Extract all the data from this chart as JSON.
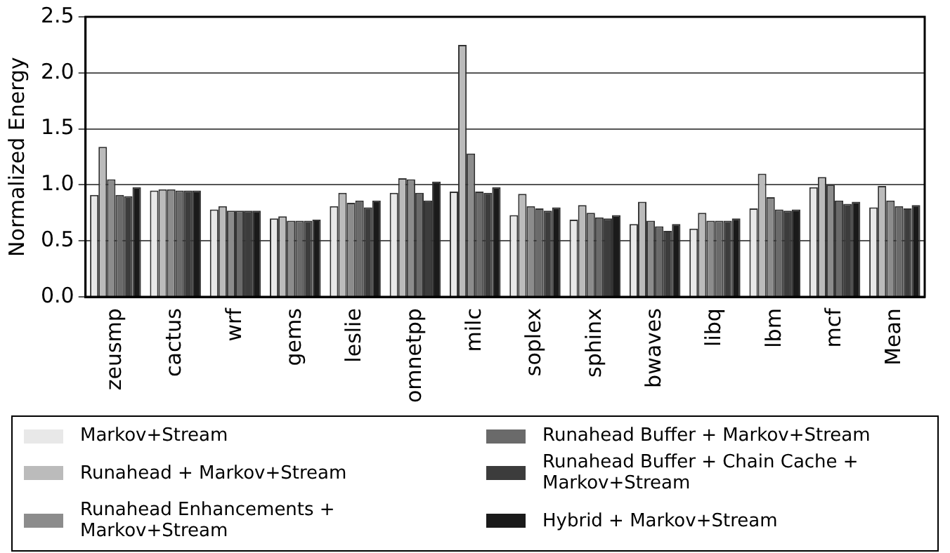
{
  "chart_data": {
    "type": "bar",
    "ylabel": "Normalized Energy",
    "categories": [
      "zeusmp",
      "cactus",
      "wrf",
      "gems",
      "leslie",
      "omnetpp",
      "milc",
      "soplex",
      "sphinx",
      "bwaves",
      "libq",
      "lbm",
      "mcf",
      "Mean"
    ],
    "series": [
      {
        "name": "Markov+Stream",
        "color": "#e8e8e8",
        "values": [
          0.91,
          0.95,
          0.78,
          0.7,
          0.81,
          0.93,
          0.94,
          0.73,
          0.69,
          0.65,
          0.61,
          0.79,
          0.98,
          0.8
        ]
      },
      {
        "name": "Runahead + Markov+Stream",
        "color": "#bbbbbb",
        "values": [
          1.34,
          0.96,
          0.81,
          0.72,
          0.93,
          1.06,
          2.25,
          0.92,
          0.82,
          0.85,
          0.75,
          1.1,
          1.07,
          0.99
        ]
      },
      {
        "name": "Runahead Enhancements + Markov+Stream",
        "color": "#8c8c8c",
        "values": [
          1.05,
          0.96,
          0.77,
          0.68,
          0.84,
          1.05,
          1.28,
          0.81,
          0.75,
          0.68,
          0.68,
          0.89,
          1.0,
          0.86
        ]
      },
      {
        "name": "Runahead Buffer + Markov+Stream",
        "color": "#6a6a6a",
        "values": [
          0.91,
          0.95,
          0.77,
          0.68,
          0.86,
          0.93,
          0.94,
          0.79,
          0.71,
          0.63,
          0.68,
          0.78,
          0.86,
          0.81
        ]
      },
      {
        "name": "Runahead Buffer + Chain Cache + Markov+Stream",
        "color": "#3c3c3c",
        "values": [
          0.9,
          0.95,
          0.77,
          0.68,
          0.8,
          0.86,
          0.93,
          0.77,
          0.7,
          0.59,
          0.68,
          0.77,
          0.83,
          0.79
        ]
      },
      {
        "name": "Hybrid + Markov+Stream",
        "color": "#1a1a1a",
        "values": [
          0.98,
          0.95,
          0.77,
          0.69,
          0.86,
          1.03,
          0.98,
          0.8,
          0.73,
          0.65,
          0.7,
          0.78,
          0.85,
          0.82
        ]
      }
    ],
    "ylim": [
      0,
      2.5
    ],
    "yticks": [
      {
        "value": 0,
        "label": "0.0"
      },
      0.5,
      {
        "value": 1,
        "label": "1.0"
      },
      1.5,
      {
        "value": 2,
        "label": "2.0"
      },
      2.5
    ],
    "grid": "y",
    "legend": "bottom"
  }
}
